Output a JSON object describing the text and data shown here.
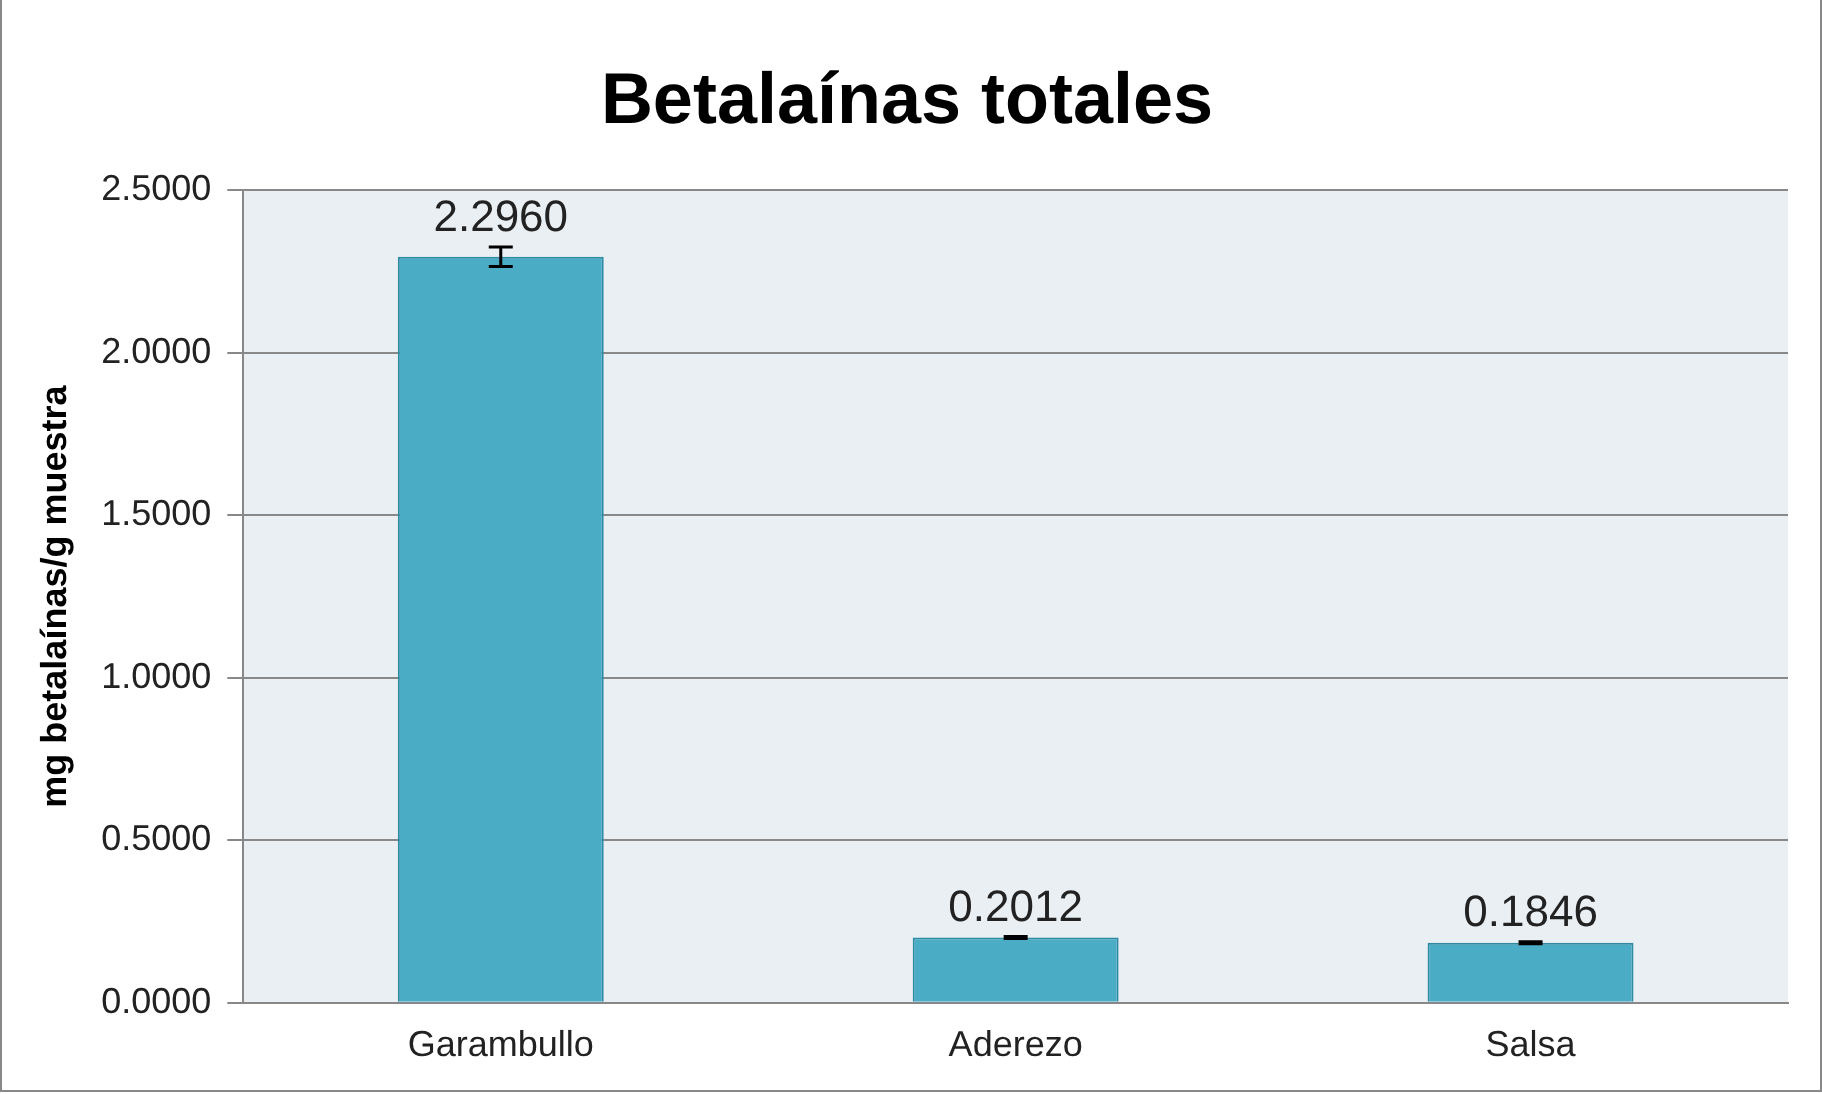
{
  "chart_data": {
    "type": "bar",
    "title": "Betalaínas totales",
    "ylabel": "mg betalaínas/g muestra",
    "categories": [
      "Garambullo",
      "Aderezo",
      "Salsa"
    ],
    "values": [
      2.296,
      0.2012,
      0.1846
    ],
    "errors": [
      0.03,
      0.003,
      0.003
    ],
    "color": "#4bacc6",
    "value_labels": [
      "2.2960",
      "0.2012",
      "0.1846"
    ],
    "ylim": [
      0,
      2.5
    ],
    "yticks": [
      {
        "value": 0,
        "label": "0.0000"
      },
      {
        "value": 0.5,
        "label": "0.5000"
      },
      {
        "value": 1,
        "label": "1.0000"
      },
      {
        "value": 1.5,
        "label": "1.5000"
      },
      {
        "value": 2,
        "label": "2.0000"
      },
      {
        "value": 2.5,
        "label": "2.5000"
      }
    ],
    "grid": "y",
    "legend": false
  }
}
